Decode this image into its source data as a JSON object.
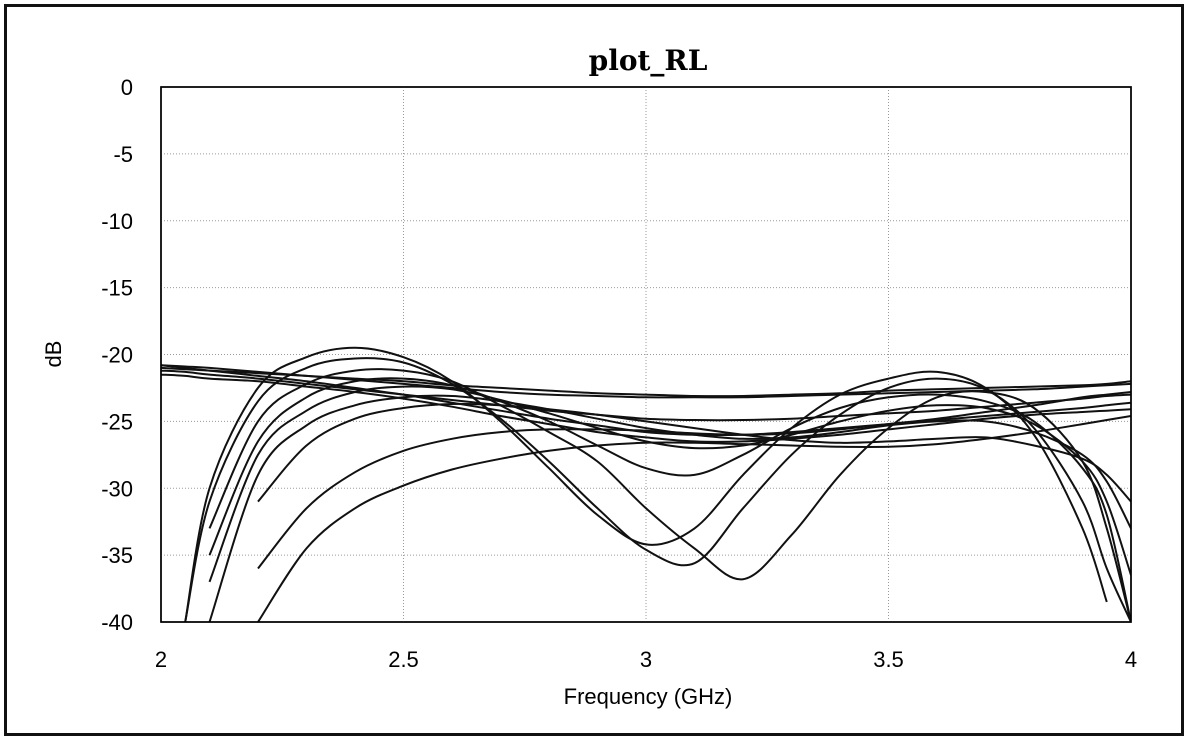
{
  "chart_data": {
    "type": "line",
    "title": "plot_RL",
    "xlabel": "Frequency (GHz)",
    "ylabel": "dB",
    "xlim": [
      2,
      4
    ],
    "ylim": [
      -40,
      0
    ],
    "x_ticks": [
      "2",
      "2.5",
      "3",
      "3.5",
      "4"
    ],
    "x_tick_values": [
      2,
      2.5,
      3,
      3.5,
      4
    ],
    "y_ticks": [
      "0",
      "-5",
      "-10",
      "-15",
      "-20",
      "-25",
      "-30",
      "-35",
      "-40"
    ],
    "y_tick_values": [
      0,
      -5,
      -10,
      -15,
      -20,
      -25,
      -30,
      -35,
      -40
    ],
    "grid": true,
    "line_color": "#111111",
    "x": [
      2.0,
      2.05,
      2.1,
      2.2,
      2.3,
      2.4,
      2.5,
      2.6,
      2.7,
      2.8,
      2.9,
      3.0,
      3.1,
      3.2,
      3.3,
      3.4,
      3.5,
      3.6,
      3.7,
      3.8,
      3.9,
      3.95,
      4.0
    ],
    "series": [
      {
        "values": [
          null,
          -40.0,
          -30.0,
          -22.5,
          -20.2,
          -19.5,
          -20.2,
          -22.0,
          -25.0,
          -28.5,
          -32.0,
          -34.2,
          -33.0,
          -29.0,
          -25.5,
          -23.0,
          -21.8,
          -21.3,
          -22.5,
          -26.0,
          -33.0,
          -38.5,
          null
        ]
      },
      {
        "values": [
          null,
          -40.0,
          -31.0,
          -23.5,
          -21.0,
          -20.3,
          -20.6,
          -22.2,
          -24.8,
          -28.0,
          -31.5,
          -34.6,
          -35.6,
          -31.5,
          -27.5,
          -24.5,
          -22.5,
          -21.8,
          -22.6,
          -25.5,
          -31.0,
          -36.0,
          -40.0
        ]
      },
      {
        "values": [
          null,
          null,
          -33.0,
          -25.0,
          -22.2,
          -21.2,
          -21.2,
          -22.0,
          -23.8,
          -25.8,
          -28.0,
          -31.5,
          -34.5,
          -36.8,
          -33.5,
          -29.0,
          -25.5,
          -23.2,
          -22.8,
          -24.0,
          -28.0,
          -33.0,
          -40.0
        ]
      },
      {
        "values": [
          null,
          null,
          -35.0,
          -26.5,
          -23.2,
          -22.0,
          -21.8,
          -22.3,
          -23.5,
          -25.0,
          -26.8,
          -28.5,
          -29.0,
          -27.5,
          -25.5,
          -24.0,
          -23.2,
          -23.0,
          -23.5,
          -25.0,
          -28.5,
          -32.0,
          -40.0
        ]
      },
      {
        "values": [
          null,
          null,
          -37.0,
          -27.5,
          -24.2,
          -22.8,
          -22.4,
          -22.6,
          -23.4,
          -24.4,
          -25.5,
          -26.5,
          -27.0,
          -26.8,
          -26.0,
          -25.0,
          -24.2,
          -23.8,
          -24.0,
          -25.2,
          -28.0,
          -31.0,
          -36.5
        ]
      },
      {
        "values": [
          null,
          null,
          -40.0,
          -29.0,
          -25.3,
          -23.8,
          -23.2,
          -23.1,
          -23.5,
          -24.1,
          -24.8,
          -25.5,
          -26.0,
          -26.3,
          -26.2,
          -25.8,
          -25.3,
          -25.0,
          -25.0,
          -25.8,
          -27.5,
          -29.5,
          -33.0
        ]
      },
      {
        "values": [
          null,
          null,
          null,
          -31.0,
          -26.8,
          -24.8,
          -24.0,
          -23.7,
          -23.8,
          -24.1,
          -24.5,
          -25.0,
          -25.5,
          -26.0,
          -26.4,
          -26.6,
          -26.5,
          -26.3,
          -26.2,
          -26.8,
          -27.8,
          -29.0,
          -31.0
        ]
      },
      {
        "values": [
          null,
          null,
          null,
          -36.0,
          -31.5,
          -28.8,
          -27.2,
          -26.3,
          -25.8,
          -25.6,
          -25.6,
          -25.7,
          -25.9,
          -26.0,
          -25.9,
          -25.6,
          -25.2,
          -24.8,
          -24.3,
          -23.8,
          -23.2,
          -23.0,
          -22.8
        ]
      },
      {
        "values": [
          null,
          null,
          null,
          -40.0,
          -34.5,
          -31.5,
          -29.8,
          -28.6,
          -27.8,
          -27.2,
          -26.8,
          -26.6,
          -26.6,
          -26.7,
          -26.8,
          -26.9,
          -26.9,
          -26.7,
          -26.3,
          -25.8,
          -25.2,
          -24.9,
          -24.6
        ]
      },
      {
        "values": [
          -20.8,
          -20.9,
          -21.0,
          -21.3,
          -21.6,
          -21.9,
          -22.2,
          -22.5,
          -22.8,
          -23.0,
          -23.1,
          -23.2,
          -23.2,
          -23.2,
          -23.1,
          -23.0,
          -22.9,
          -22.8,
          -22.7,
          -22.6,
          -22.4,
          -22.3,
          -22.2
        ]
      },
      {
        "values": [
          -21.0,
          -21.1,
          -21.2,
          -21.4,
          -21.6,
          -21.8,
          -22.0,
          -22.3,
          -22.5,
          -22.7,
          -22.9,
          -23.0,
          -23.1,
          -23.1,
          -23.0,
          -22.9,
          -22.7,
          -22.6,
          -22.5,
          -22.4,
          -22.3,
          -22.2,
          -22.0
        ]
      },
      {
        "values": [
          -21.2,
          -21.3,
          -21.5,
          -21.8,
          -22.2,
          -22.6,
          -23.0,
          -23.4,
          -23.8,
          -24.2,
          -24.5,
          -24.8,
          -24.9,
          -24.9,
          -24.8,
          -24.6,
          -24.4,
          -24.2,
          -23.9,
          -23.6,
          -23.3,
          -23.1,
          -23.0
        ]
      },
      {
        "values": [
          -20.8,
          -21.0,
          -21.2,
          -21.6,
          -22.0,
          -22.5,
          -23.0,
          -23.6,
          -24.2,
          -24.8,
          -25.3,
          -25.8,
          -26.0,
          -26.0,
          -25.8,
          -25.5,
          -25.2,
          -24.9,
          -24.6,
          -24.3,
          -24.0,
          -23.8,
          -23.6
        ]
      },
      {
        "values": [
          -21.5,
          -21.6,
          -21.8,
          -22.0,
          -22.4,
          -22.8,
          -23.3,
          -23.9,
          -24.6,
          -25.2,
          -25.8,
          -26.2,
          -26.5,
          -26.5,
          -26.3,
          -26.0,
          -25.6,
          -25.2,
          -24.8,
          -24.5,
          -24.3,
          -24.2,
          -24.1
        ]
      }
    ]
  }
}
